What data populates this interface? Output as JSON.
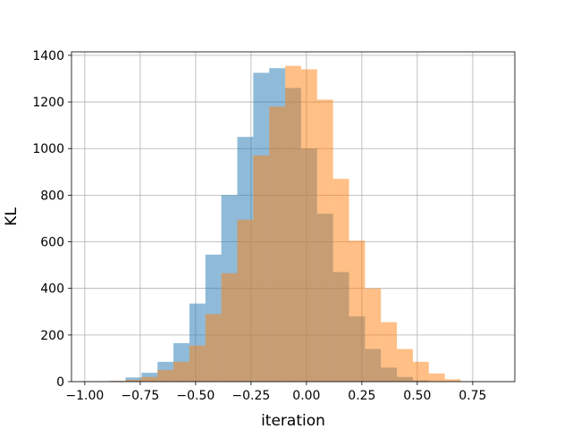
{
  "chart_data": {
    "type": "bar",
    "title": "",
    "xlabel": "iteration",
    "ylabel": "KL",
    "xlim": [
      -1.06,
      0.94
    ],
    "ylim": [
      0,
      1415
    ],
    "xticks": [
      -1.0,
      -0.75,
      -0.5,
      -0.25,
      0.0,
      0.25,
      0.5,
      0.75
    ],
    "xtick_labels": [
      "−1.00",
      "−0.75",
      "−0.50",
      "−0.25",
      "0.00",
      "0.25",
      "0.50",
      "0.75"
    ],
    "yticks": [
      0,
      200,
      400,
      600,
      800,
      1000,
      1200,
      1400
    ],
    "ytick_labels": [
      "0",
      "200",
      "400",
      "600",
      "800",
      "1000",
      "1200",
      "1400"
    ],
    "grid": true,
    "legend": false,
    "series": [
      {
        "color": "#1f77b4",
        "alpha": 0.5,
        "bin_edges": [
          -0.96,
          -0.888,
          -0.816,
          -0.744,
          -0.672,
          -0.6,
          -0.528,
          -0.456,
          -0.384,
          -0.312,
          -0.24,
          -0.168,
          -0.096,
          -0.024,
          0.048,
          0.12,
          0.192,
          0.264,
          0.336,
          0.408,
          0.48,
          0.552
        ],
        "counts": [
          2,
          3,
          18,
          38,
          85,
          165,
          335,
          545,
          800,
          1050,
          1325,
          1345,
          1260,
          1000,
          720,
          470,
          280,
          140,
          60,
          20,
          5
        ]
      },
      {
        "color": "#ff7f0e",
        "alpha": 0.5,
        "bin_edges": [
          -0.888,
          -0.816,
          -0.744,
          -0.672,
          -0.6,
          -0.528,
          -0.456,
          -0.384,
          -0.312,
          -0.24,
          -0.168,
          -0.096,
          -0.024,
          0.048,
          0.12,
          0.192,
          0.264,
          0.336,
          0.408,
          0.48,
          0.552,
          0.624,
          0.696
        ],
        "counts": [
          3,
          8,
          20,
          50,
          85,
          155,
          290,
          465,
          695,
          970,
          1180,
          1355,
          1340,
          1210,
          870,
          605,
          400,
          255,
          140,
          85,
          35,
          10
        ]
      }
    ]
  }
}
